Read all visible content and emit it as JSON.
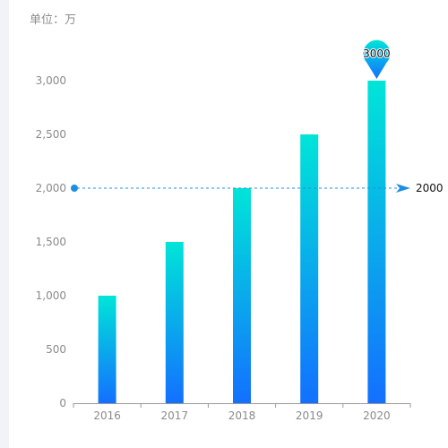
{
  "unit_label": "单位：万",
  "chart_data": {
    "type": "bar",
    "categories": [
      "2016",
      "2017",
      "2018",
      "2019",
      "2020"
    ],
    "values": [
      1000,
      1500,
      2000,
      2500,
      3000
    ],
    "ylim": [
      0,
      3000
    ],
    "y_ticks": [
      0,
      500,
      1000,
      1500,
      2000,
      2500,
      3000
    ],
    "y_tick_labels": [
      "0",
      "500",
      "1,000",
      "1,500",
      "2,000",
      "2,500",
      "3,000"
    ],
    "grid": false,
    "bar_gradient": {
      "top": "#00e5d8",
      "bottom": "#1370ff"
    },
    "max_marker": {
      "category": "2020",
      "value": 3000,
      "label": "3000"
    },
    "mark_line": {
      "value": 2000,
      "label": "2000",
      "color": "#1e8fe0"
    }
  }
}
